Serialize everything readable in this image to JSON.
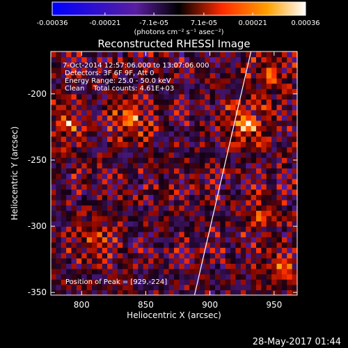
{
  "chart_data": {
    "type": "heatmap",
    "title": "Reconstructed RHESSI Image",
    "xlabel": "Heliocentric X (arcsec)",
    "ylabel": "Heliocentric Y (arcsec)",
    "xlim": [
      776,
      968
    ],
    "ylim": [
      -352,
      -168
    ],
    "x_ticks": [
      "800",
      "850",
      "900",
      "950"
    ],
    "y_ticks": [
      "-200",
      "-250",
      "-300",
      "-350"
    ],
    "x_tick_values": [
      800,
      850,
      900,
      950
    ],
    "y_tick_values": [
      -200,
      -250,
      -300,
      -350
    ],
    "colorbar": {
      "min": -0.00036,
      "max": 0.00036,
      "tick_labels": [
        "-0.00036",
        "-0.00021",
        "-7.1e-05",
        "7.1e-05",
        "0.00021",
        "0.00036"
      ],
      "unit_label": "(photons cm⁻² s⁻¹ asec⁻²)"
    },
    "annotations": [
      "7-Oct-2014 12:57:06.000 to 13:07:06.000",
      "Detectors: 3F 6F 9F, Att 0",
      "Energy Range: 25.0 - 50.0 keV",
      "Clean    Total counts: 4.61E+03"
    ],
    "peak_label": "Position of Peak = [929,-224]",
    "peak": [
      929,
      -224
    ],
    "sources": [
      {
        "x": 929,
        "y": -222,
        "amp": 1.0
      },
      {
        "x": 838,
        "y": -218,
        "amp": 0.8
      },
      {
        "x": 788,
        "y": -222,
        "amp": 0.65
      },
      {
        "x": 811,
        "y": -308,
        "amp": 0.55
      },
      {
        "x": 947,
        "y": -186,
        "amp": 0.6
      },
      {
        "x": 941,
        "y": -292,
        "amp": 0.5
      },
      {
        "x": 957,
        "y": -332,
        "amp": 0.55
      }
    ],
    "limb_line": [
      [
        932,
        -168
      ],
      [
        888,
        -352
      ]
    ]
  },
  "footer_date": "28-May-2017 01:44"
}
